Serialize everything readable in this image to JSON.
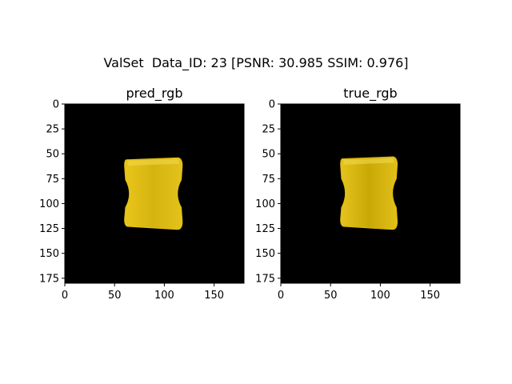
{
  "figure": {
    "suptitle": "ValSet  Data_ID: 23 [PSNR: 30.985 SSIM: 0.976]"
  },
  "chart_data": [
    {
      "type": "heatmap",
      "title": "pred_rgb",
      "xlabel": "",
      "ylabel": "",
      "xlim": [
        0,
        180
      ],
      "ylim": [
        180,
        0
      ],
      "xticks": [
        0,
        50,
        100,
        150
      ],
      "yticks": [
        0,
        25,
        50,
        75,
        100,
        125,
        150,
        175
      ],
      "image": {
        "background_color": "#000000",
        "object_color": "#e0c10f",
        "object": "yellow hourglass-shaped block",
        "object_extent_x": [
          60,
          118
        ],
        "object_extent_y": [
          54,
          126
        ]
      }
    },
    {
      "type": "heatmap",
      "title": "true_rgb",
      "xlabel": "",
      "ylabel": "",
      "xlim": [
        0,
        180
      ],
      "ylim": [
        180,
        0
      ],
      "xticks": [
        0,
        50,
        100,
        150
      ],
      "yticks": [
        0,
        25,
        50,
        75,
        100,
        125,
        150,
        175
      ],
      "image": {
        "background_color": "#000000",
        "object_color": "#d9b60a",
        "object": "yellow hourglass-shaped block",
        "object_extent_x": [
          60,
          117
        ],
        "object_extent_y": [
          53,
          126
        ]
      }
    }
  ]
}
